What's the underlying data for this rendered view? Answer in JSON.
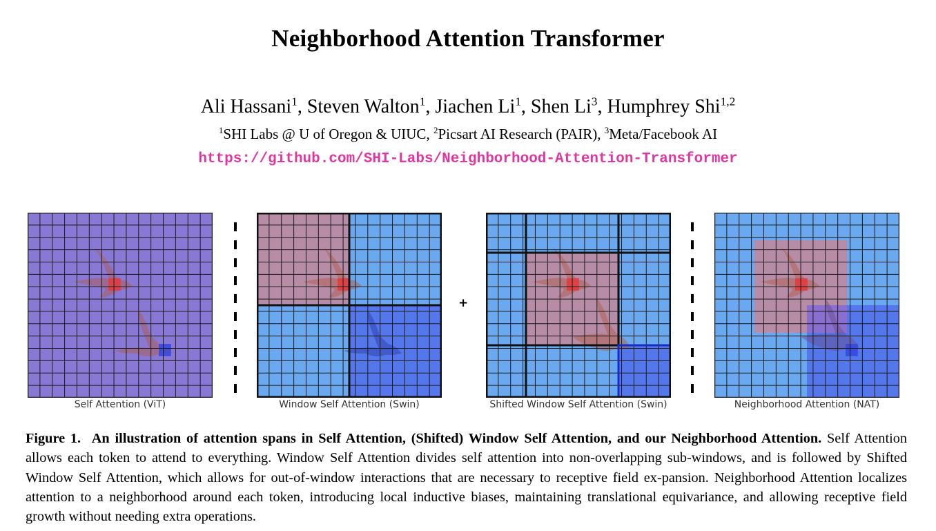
{
  "title": "Neighborhood Attention Transformer",
  "authors": [
    {
      "name": "Ali Hassani",
      "sup": "1",
      "sep": ", "
    },
    {
      "name": "Steven Walton",
      "sup": "1",
      "sep": ", "
    },
    {
      "name": "Jiachen Li",
      "sup": "1",
      "sep": ", "
    },
    {
      "name": "Shen Li",
      "sup": "3",
      "sep": ", "
    },
    {
      "name": "Humphrey Shi",
      "sup": "1,2",
      "sep": ""
    }
  ],
  "affiliations": [
    {
      "sup": "1",
      "name": "SHI Labs @ U of Oregon & UIUC",
      "sep": ", "
    },
    {
      "sup": "2",
      "name": "Picsart AI Research (PAIR)",
      "sep": ", "
    },
    {
      "sup": "3",
      "name": "Meta/Facebook AI",
      "sep": ""
    }
  ],
  "url": "https://github.com/SHI-Labs/Neighborhood-Attention-Transformer",
  "figure": {
    "panels": [
      {
        "label": "Self Attention (ViT)"
      },
      {
        "label": "Window Self Attention (Swin)"
      },
      {
        "label": "Shifted Window Self Attention (Swin)"
      },
      {
        "label": "Neighborhood Attention (NAT)"
      }
    ],
    "plus_sign": "+",
    "colors": {
      "purple": "#8978d4",
      "light_blue": "#6aa8ef",
      "pink": "#b78ca6",
      "dark_blue": "#5478ec",
      "query_red": "#e5383b",
      "query_blue": "#3347e0",
      "grid_line": "#1a1a1a"
    }
  },
  "caption": {
    "label": "Figure 1.",
    "bold_text": "An illustration of attention spans in Self Attention, (Shifted) Window Self Attention, and our Neighborhood Attention.",
    "body": "Self Attention allows each token to attend to everything. Window Self Attention divides self attention into non-overlapping sub-windows, and is followed by Shifted Window Self Attention, which allows for out-of-window interactions that are necessary to receptive field ex-pansion. Neighborhood Attention localizes attention to a neighborhood around each token, introducing local inductive biases, maintaining translational equivariance, and allowing receptive field growth without needing extra operations."
  }
}
